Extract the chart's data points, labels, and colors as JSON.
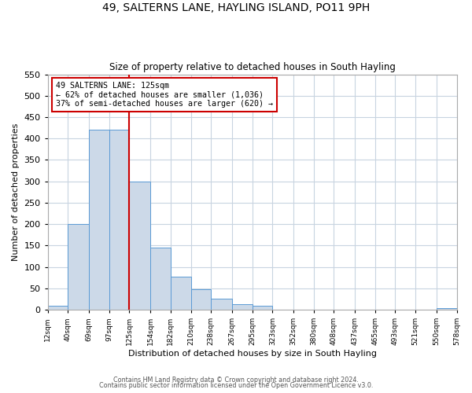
{
  "title": "49, SALTERNS LANE, HAYLING ISLAND, PO11 9PH",
  "subtitle": "Size of property relative to detached houses in South Hayling",
  "xlabel": "Distribution of detached houses by size in South Hayling",
  "ylabel": "Number of detached properties",
  "bin_edges": [
    12,
    40,
    69,
    97,
    125,
    154,
    182,
    210,
    238,
    267,
    295,
    323,
    352,
    380,
    408,
    437,
    465,
    493,
    521,
    550,
    578
  ],
  "bar_heights": [
    10,
    200,
    420,
    420,
    300,
    145,
    78,
    48,
    25,
    13,
    10,
    0,
    0,
    0,
    0,
    0,
    0,
    0,
    0,
    3
  ],
  "bar_color": "#ccd9e8",
  "bar_edge_color": "#5b9bd5",
  "vline_x": 125,
  "vline_color": "#cc0000",
  "ylim": [
    0,
    550
  ],
  "annotation_title": "49 SALTERNS LANE: 125sqm",
  "annotation_line1": "← 62% of detached houses are smaller (1,036)",
  "annotation_line2": "37% of semi-detached houses are larger (620) →",
  "annotation_box_color": "#ffffff",
  "annotation_box_edge": "#cc0000",
  "footer_line1": "Contains HM Land Registry data © Crown copyright and database right 2024.",
  "footer_line2": "Contains public sector information licensed under the Open Government Licence v3.0.",
  "tick_labels": [
    "12sqm",
    "40sqm",
    "69sqm",
    "97sqm",
    "125sqm",
    "154sqm",
    "182sqm",
    "210sqm",
    "238sqm",
    "267sqm",
    "295sqm",
    "323sqm",
    "352sqm",
    "380sqm",
    "408sqm",
    "437sqm",
    "465sqm",
    "493sqm",
    "521sqm",
    "550sqm",
    "578sqm"
  ],
  "background_color": "#ffffff",
  "grid_color": "#d0d8e0",
  "yticks": [
    0,
    50,
    100,
    150,
    200,
    250,
    300,
    350,
    400,
    450,
    500,
    550
  ]
}
